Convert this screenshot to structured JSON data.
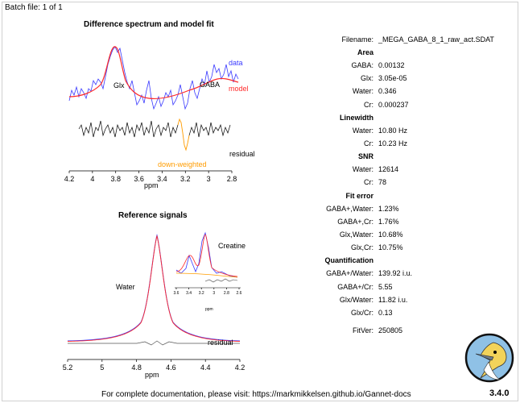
{
  "header": {
    "batch": "Batch file: 1 of 1"
  },
  "left": {
    "diff_title": "Difference spectrum and model fit",
    "diff_labels": {
      "data": "data",
      "model": "model",
      "glx": "Glx",
      "gaba": "GABA",
      "residual": "residual",
      "down_weighted": "down-weighted"
    },
    "diff_ticks": [
      "4.2",
      "4",
      "3.8",
      "3.6",
      "3.4",
      "3.2",
      "3",
      "2.8"
    ],
    "diff_xlabel": "ppm",
    "ref_title": "Reference signals",
    "ref_labels": {
      "creatine": "Creatine",
      "water": "Water",
      "residual": "residual"
    },
    "ref_ticks": [
      "5.2",
      "5",
      "4.8",
      "4.6",
      "4.4",
      "4.2"
    ],
    "ref_xlabel": "ppm",
    "inset_ticks": [
      "3.6",
      "3.4",
      "3.2",
      "3",
      "2.8",
      "2.6"
    ],
    "inset_xlabel": "ppm"
  },
  "results": {
    "filename": {
      "label": "Filename:",
      "value": "_MEGA_GABA_8_1_raw_act.SDAT"
    },
    "sections": [
      {
        "title": "Area",
        "rows": [
          {
            "label": "GABA:",
            "value": "0.00132"
          },
          {
            "label": "Glx:",
            "value": "3.05e-05"
          },
          {
            "label": "Water:",
            "value": "0.346"
          },
          {
            "label": "Cr:",
            "value": "0.000237"
          }
        ]
      },
      {
        "title": "Linewidth",
        "rows": [
          {
            "label": "Water:",
            "value": "10.80 Hz"
          },
          {
            "label": "Cr:",
            "value": "10.23 Hz"
          }
        ]
      },
      {
        "title": "SNR",
        "rows": [
          {
            "label": "Water:",
            "value": "12614"
          },
          {
            "label": "Cr:",
            "value": "78"
          }
        ]
      },
      {
        "title": "Fit error",
        "rows": [
          {
            "label": "GABA+,Water:",
            "value": "1.23%"
          },
          {
            "label": "GABA+,Cr:",
            "value": "1.76%"
          },
          {
            "label": "Glx,Water:",
            "value": "10.68%"
          },
          {
            "label": "Glx,Cr:",
            "value": "10.75%"
          }
        ]
      },
      {
        "title": "Quantification",
        "rows": [
          {
            "label": "GABA+/Water:",
            "value": "139.92 i.u."
          },
          {
            "label": "GABA+/Cr:",
            "value": "5.55"
          },
          {
            "label": "Glx/Water:",
            "value": "11.82 i.u."
          },
          {
            "label": "Glx/Cr:",
            "value": "0.13"
          }
        ]
      }
    ],
    "fitver": {
      "label": "FitVer:",
      "value": "250805"
    }
  },
  "footer": {
    "docs": "For complete documentation, please visit: https://markmikkelsen.github.io/Gannet-docs",
    "version": "3.4.0"
  }
}
